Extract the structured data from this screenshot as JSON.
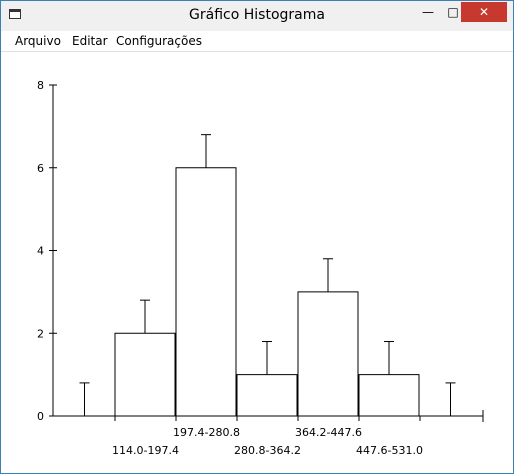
{
  "window": {
    "title": "Gráfico Histograma",
    "controls": {
      "minimize": "—",
      "maximize": "□",
      "close": "✕"
    }
  },
  "menu": {
    "items": [
      "Arquivo",
      "Editar",
      "Configurações"
    ]
  },
  "chart_data": {
    "type": "bar",
    "title": "",
    "xlabel": "",
    "ylabel": "",
    "ylim": [
      0,
      8
    ],
    "yticks": [
      "0",
      "2",
      "4",
      "6",
      "8"
    ],
    "categories": [
      "114.0-197.4",
      "197.4-280.8",
      "280.8-364.2",
      "364.2-447.6",
      "447.6-531.0"
    ],
    "values": [
      2,
      6,
      1,
      3,
      1
    ],
    "error_bars": [
      0.8,
      0.8,
      0.8,
      0.8,
      0.8
    ],
    "empty_edge_bins": {
      "left": 0,
      "right": 0,
      "error": 0.8
    },
    "grid": false,
    "legend": "none"
  }
}
